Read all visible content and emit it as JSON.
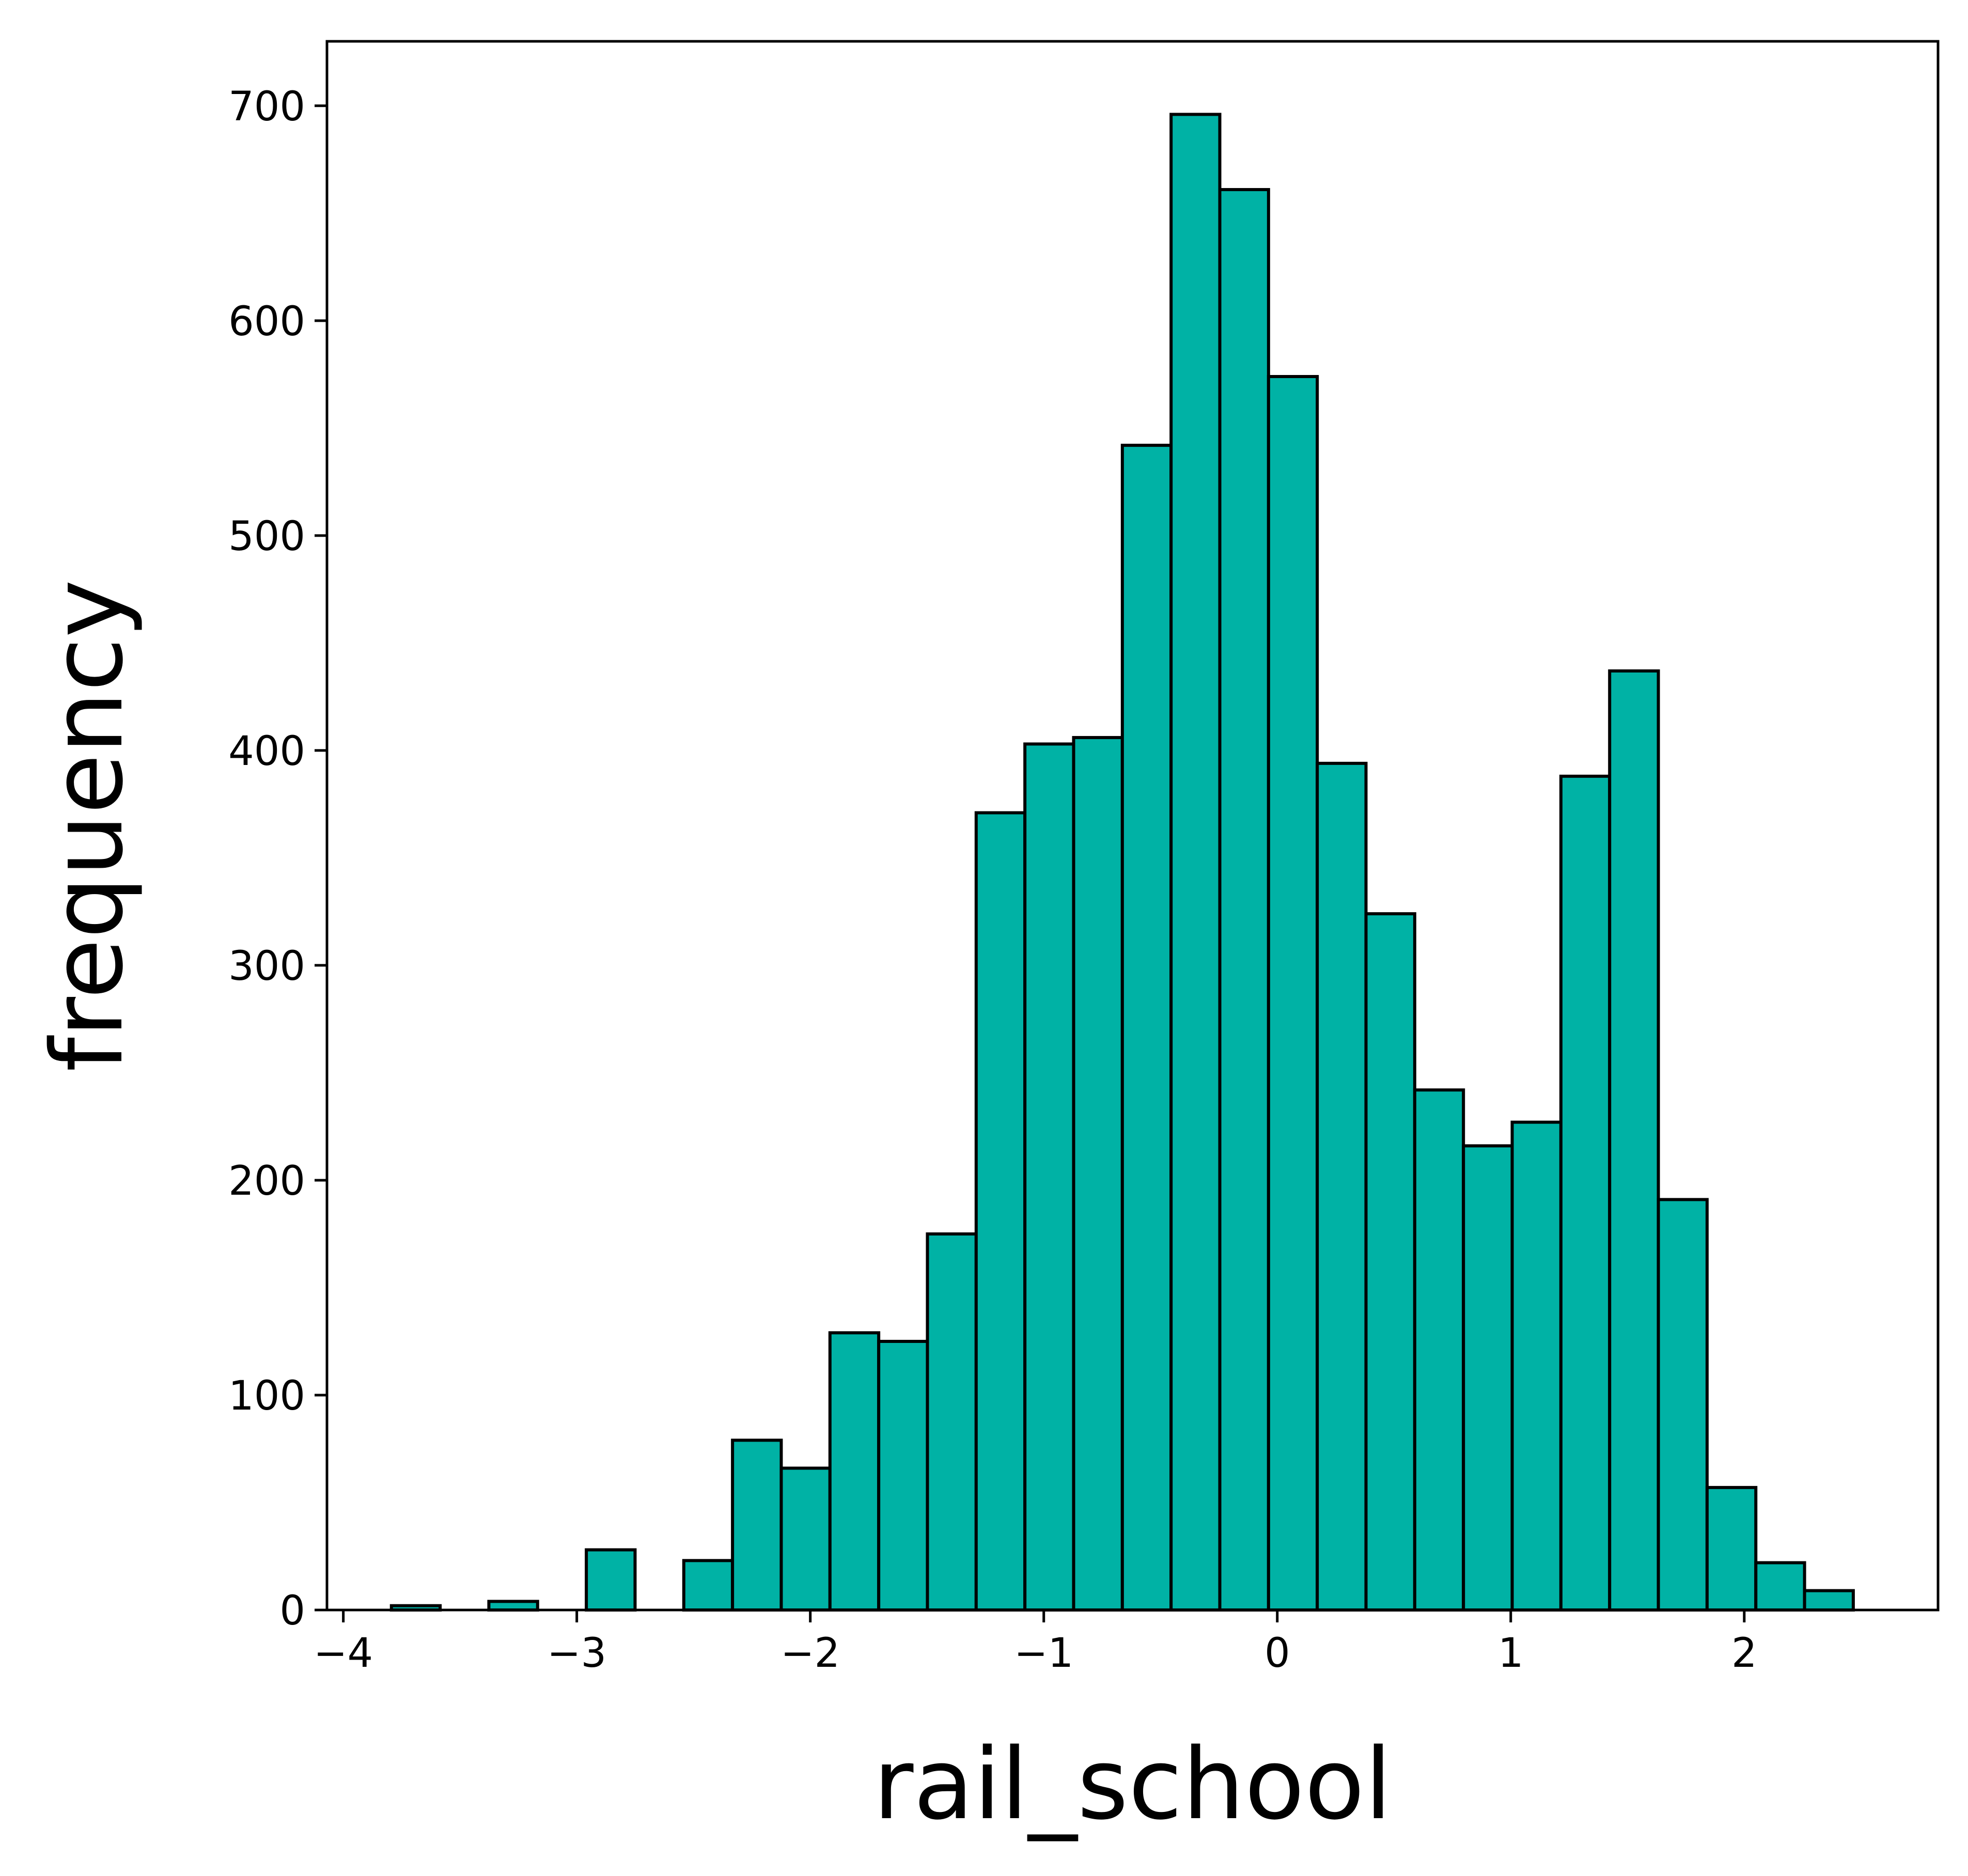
{
  "chart_data": {
    "type": "bar",
    "xlabel": "rail_school",
    "ylabel": "frequency",
    "xlim": [
      -4.07,
      2.83
    ],
    "ylim": [
      0,
      730
    ],
    "x_ticks": [
      -4,
      -3,
      -2,
      -1,
      0,
      1,
      2
    ],
    "x_tick_labels": [
      "−4",
      "−3",
      "−2",
      "−1",
      "0",
      "1",
      "2"
    ],
    "y_ticks": [
      0,
      100,
      200,
      300,
      400,
      500,
      600,
      700
    ],
    "y_tick_labels": [
      "0",
      "100",
      "200",
      "300",
      "400",
      "500",
      "600",
      "700"
    ],
    "bin_width": 0.2087,
    "bin_start": -3.794,
    "values": [
      2,
      0,
      4,
      0,
      28,
      0,
      23,
      79,
      66,
      129,
      125,
      175,
      371,
      403,
      406,
      542,
      696,
      661,
      574,
      394,
      324,
      242,
      216,
      227,
      388,
      437,
      191,
      57,
      22,
      9
    ],
    "grid": false,
    "colors": {
      "bar_fill": "#00b2a5",
      "bar_edge": "#000000"
    }
  }
}
